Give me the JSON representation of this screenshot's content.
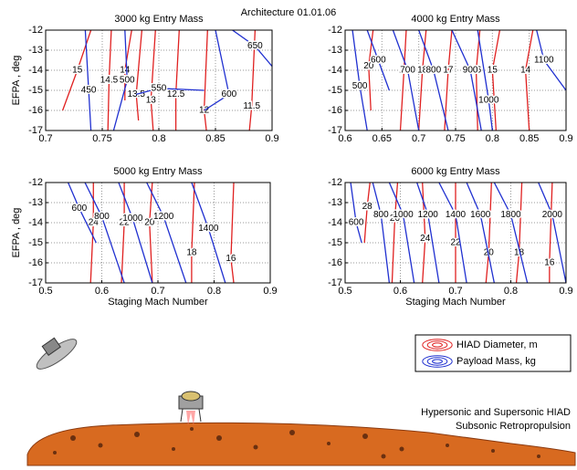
{
  "title": "Architecture 01.01.06",
  "chart_data": [
    {
      "type": "contour",
      "title": "3000 kg Entry Mass",
      "ylabel": "EFPA , deg",
      "xlim": [
        0.7,
        0.9
      ],
      "ylim": [
        -17,
        -12
      ],
      "xticks": [
        0.7,
        0.75,
        0.8,
        0.85,
        0.9
      ],
      "yticks": [
        -17,
        -16,
        -15,
        -14,
        -13,
        -12
      ],
      "grid": true,
      "contours": [
        {
          "level": 15,
          "color": "#e02020",
          "x": [
            0.715,
            0.728,
            0.74
          ],
          "y": [
            -16,
            -14,
            -12
          ]
        },
        {
          "level": 14.5,
          "color": "#e02020",
          "x": [
            0.755,
            0.756,
            0.758
          ],
          "y": [
            -17,
            -14.5,
            -12
          ]
        },
        {
          "level": 14,
          "color": "#e02020",
          "x": [
            0.77,
            0.77,
            0.776
          ],
          "y": [
            -15.5,
            -14,
            -12
          ]
        },
        {
          "level": 13.5,
          "color": "#e02020",
          "x": [
            0.782,
            0.78,
            0.785
          ],
          "y": [
            -16.5,
            -15.2,
            -12
          ]
        },
        {
          "level": 13,
          "color": "#e02020",
          "x": [
            0.795,
            0.793,
            0.797
          ],
          "y": [
            -17,
            -15.5,
            -12
          ]
        },
        {
          "level": 12.5,
          "color": "#e02020",
          "x": [
            0.815,
            0.815,
            0.818
          ],
          "y": [
            -17,
            -15.2,
            -12
          ]
        },
        {
          "level": 12,
          "color": "#e02020",
          "x": [
            0.842,
            0.84,
            0.843
          ],
          "y": [
            -17,
            -16,
            -12
          ]
        },
        {
          "level": 11.5,
          "color": "#e02020",
          "x": [
            0.88,
            0.882,
            0.885
          ],
          "y": [
            -17,
            -15.8,
            -12
          ]
        },
        {
          "level": 450,
          "color": "#2030d0",
          "x": [
            0.74,
            0.738,
            0.735
          ],
          "y": [
            -17,
            -15,
            -12
          ]
        },
        {
          "level": 500,
          "color": "#2030d0",
          "x": [
            0.76,
            0.772,
            0.77
          ],
          "y": [
            -17,
            -14.5,
            -12
          ]
        },
        {
          "level": 550,
          "color": "#2030d0",
          "x": [
            0.78,
            0.8,
            0.84
          ],
          "y": [
            -15.2,
            -14.9,
            -15
          ]
        },
        {
          "level": 600,
          "color": "#2030d0",
          "x": [
            0.84,
            0.862,
            0.85
          ],
          "y": [
            -16,
            -15.2,
            -12
          ]
        },
        {
          "level": 650,
          "color": "#2030d0",
          "x": [
            0.865,
            0.885,
            0.9
          ],
          "y": [
            -12,
            -12.8,
            -13.8
          ]
        }
      ]
    },
    {
      "type": "contour",
      "title": "4000 kg Entry Mass",
      "xlim": [
        0.6,
        0.9
      ],
      "ylim": [
        -17,
        -12
      ],
      "xticks": [
        0.6,
        0.65,
        0.7,
        0.75,
        0.8,
        0.85,
        0.9
      ],
      "yticks": [
        -17,
        -16,
        -15,
        -14,
        -13,
        -12
      ],
      "grid": true,
      "contours": [
        {
          "level": 20,
          "color": "#e02020",
          "x": [
            0.635,
            0.632,
            0.638
          ],
          "y": [
            -16,
            -13.8,
            -12
          ]
        },
        {
          "level": 19,
          "color": "#e02020",
          "x": [
            0.675,
            0.68,
            0.683
          ],
          "y": [
            -17,
            -14,
            -12
          ]
        },
        {
          "level": 18,
          "color": "#e02020",
          "x": [
            0.7,
            0.705,
            0.71
          ],
          "y": [
            -17,
            -14,
            -12
          ]
        },
        {
          "level": 17,
          "color": "#e02020",
          "x": [
            0.735,
            0.74,
            0.745
          ],
          "y": [
            -17,
            -14,
            -12
          ]
        },
        {
          "level": 16,
          "color": "#e02020",
          "x": [
            0.78,
            0.778,
            0.783
          ],
          "y": [
            -17,
            -14,
            -12
          ]
        },
        {
          "level": 15,
          "color": "#e02020",
          "x": [
            0.805,
            0.8,
            0.81
          ],
          "y": [
            -17,
            -14,
            -12
          ]
        },
        {
          "level": 14,
          "color": "#e02020",
          "x": [
            0.85,
            0.845,
            0.855
          ],
          "y": [
            -17,
            -14,
            -12
          ]
        },
        {
          "level": 500,
          "color": "#2030d0",
          "x": [
            0.63,
            0.62,
            0.61
          ],
          "y": [
            -17,
            -14.8,
            -12
          ]
        },
        {
          "level": 600,
          "color": "#2030d0",
          "x": [
            0.66,
            0.645,
            0.63
          ],
          "y": [
            -15,
            -13.5,
            -12
          ]
        },
        {
          "level": 700,
          "color": "#2030d0",
          "x": [
            0.7,
            0.685,
            0.665
          ],
          "y": [
            -17,
            -14,
            -12
          ]
        },
        {
          "level": 800,
          "color": "#2030d0",
          "x": [
            0.74,
            0.72,
            0.7
          ],
          "y": [
            -17,
            -14,
            -12
          ]
        },
        {
          "level": 900,
          "color": "#2030d0",
          "x": [
            0.785,
            0.77,
            0.745
          ],
          "y": [
            -17,
            -14,
            -12
          ]
        },
        {
          "level": 1000,
          "color": "#2030d0",
          "x": [
            0.8,
            0.795,
            0.78
          ],
          "y": [
            -17,
            -15.5,
            -12
          ]
        },
        {
          "level": 1100,
          "color": "#2030d0",
          "x": [
            0.9,
            0.87,
            0.86
          ],
          "y": [
            -15,
            -13.5,
            -12
          ]
        }
      ]
    },
    {
      "type": "contour",
      "title": "5000 kg Entry Mass",
      "ylabel": "EFPA , deg",
      "xlabel": "Staging Mach Number",
      "xlim": [
        0.5,
        0.9
      ],
      "ylim": [
        -17,
        -12
      ],
      "xticks": [
        0.5,
        0.6,
        0.7,
        0.8,
        0.9
      ],
      "yticks": [
        -17,
        -16,
        -15,
        -14,
        -13,
        -12
      ],
      "grid": true,
      "contours": [
        {
          "level": 24,
          "color": "#e02020",
          "x": [
            0.58,
            0.585,
            0.585
          ],
          "y": [
            -17,
            -14,
            -12
          ]
        },
        {
          "level": 22,
          "color": "#e02020",
          "x": [
            0.635,
            0.64,
            0.64
          ],
          "y": [
            -17,
            -14,
            -12
          ]
        },
        {
          "level": 20,
          "color": "#e02020",
          "x": [
            0.69,
            0.685,
            0.69
          ],
          "y": [
            -17,
            -14,
            -12
          ]
        },
        {
          "level": 18,
          "color": "#e02020",
          "x": [
            0.76,
            0.76,
            0.765
          ],
          "y": [
            -17,
            -15.5,
            -12
          ]
        },
        {
          "level": 16,
          "color": "#e02020",
          "x": [
            0.835,
            0.83,
            0.835
          ],
          "y": [
            -17,
            -15.8,
            -12
          ]
        },
        {
          "level": 600,
          "color": "#2030d0",
          "x": [
            0.59,
            0.56,
            0.54
          ],
          "y": [
            -15,
            -13.3,
            -12
          ]
        },
        {
          "level": 800,
          "color": "#2030d0",
          "x": [
            0.64,
            0.6,
            0.57
          ],
          "y": [
            -17,
            -13.7,
            -12
          ]
        },
        {
          "level": 1000,
          "color": "#2030d0",
          "x": [
            0.69,
            0.655,
            0.63
          ],
          "y": [
            -17,
            -13.8,
            -12
          ]
        },
        {
          "level": 1200,
          "color": "#2030d0",
          "x": [
            0.75,
            0.71,
            0.68
          ],
          "y": [
            -17,
            -13.7,
            -12
          ]
        },
        {
          "level": 1400,
          "color": "#2030d0",
          "x": [
            0.82,
            0.79,
            0.76
          ],
          "y": [
            -17,
            -14.3,
            -12
          ]
        }
      ]
    },
    {
      "type": "contour",
      "title": "6000 kg Entry Mass",
      "xlabel": "Staging Mach Number",
      "xlim": [
        0.5,
        0.9
      ],
      "ylim": [
        -17,
        -12
      ],
      "xticks": [
        0.5,
        0.6,
        0.7,
        0.8,
        0.9
      ],
      "yticks": [
        -17,
        -16,
        -15,
        -14,
        -13,
        -12
      ],
      "grid": true,
      "contours": [
        {
          "level": 28,
          "color": "#e02020",
          "x": [
            0.535,
            0.54,
            0.545
          ],
          "y": [
            -15,
            -13.2,
            -12
          ]
        },
        {
          "level": 26,
          "color": "#e02020",
          "x": [
            0.585,
            0.59,
            0.595
          ],
          "y": [
            -17,
            -13.8,
            -12
          ]
        },
        {
          "level": 24,
          "color": "#e02020",
          "x": [
            0.64,
            0.645,
            0.64
          ],
          "y": [
            -17,
            -14.8,
            -12
          ]
        },
        {
          "level": 22,
          "color": "#e02020",
          "x": [
            0.7,
            0.7,
            0.7
          ],
          "y": [
            -17,
            -15,
            -12
          ]
        },
        {
          "level": 20,
          "color": "#e02020",
          "x": [
            0.755,
            0.76,
            0.765
          ],
          "y": [
            -17,
            -15.5,
            -12
          ]
        },
        {
          "level": 18,
          "color": "#e02020",
          "x": [
            0.81,
            0.815,
            0.82
          ],
          "y": [
            -17,
            -15.5,
            -12
          ]
        },
        {
          "level": 16,
          "color": "#e02020",
          "x": [
            0.87,
            0.87,
            0.875
          ],
          "y": [
            -17,
            -16,
            -12
          ]
        },
        {
          "level": 600,
          "color": "#2030d0",
          "x": [
            0.53,
            0.52,
            0.51
          ],
          "y": [
            -15,
            -14,
            -12
          ]
        },
        {
          "level": 800,
          "color": "#2030d0",
          "x": [
            0.58,
            0.565,
            0.55
          ],
          "y": [
            -17,
            -13.6,
            -12
          ]
        },
        {
          "level": 1000,
          "color": "#2030d0",
          "x": [
            0.625,
            0.605,
            0.58
          ],
          "y": [
            -17,
            -13.6,
            -12
          ]
        },
        {
          "level": 1200,
          "color": "#2030d0",
          "x": [
            0.67,
            0.65,
            0.63
          ],
          "y": [
            -17,
            -13.6,
            -12
          ]
        },
        {
          "level": 1400,
          "color": "#2030d0",
          "x": [
            0.72,
            0.7,
            0.67
          ],
          "y": [
            -17,
            -13.6,
            -12
          ]
        },
        {
          "level": 1600,
          "color": "#2030d0",
          "x": [
            0.77,
            0.745,
            0.72
          ],
          "y": [
            -17,
            -13.6,
            -12
          ]
        },
        {
          "level": 1800,
          "color": "#2030d0",
          "x": [
            0.83,
            0.8,
            0.77
          ],
          "y": [
            -17,
            -13.6,
            -12
          ]
        },
        {
          "level": 2000,
          "color": "#2030d0",
          "x": [
            0.9,
            0.875,
            0.85
          ],
          "y": [
            -17,
            -13.6,
            -12
          ]
        }
      ]
    }
  ],
  "legend": [
    {
      "label": "HIAD Diameter, m",
      "color": "#e02020"
    },
    {
      "label": "Payload Mass, kg",
      "color": "#2030d0"
    }
  ],
  "caption": [
    "Hypersonic and Supersonic HIAD",
    "Subsonic Retropropulsion"
  ]
}
